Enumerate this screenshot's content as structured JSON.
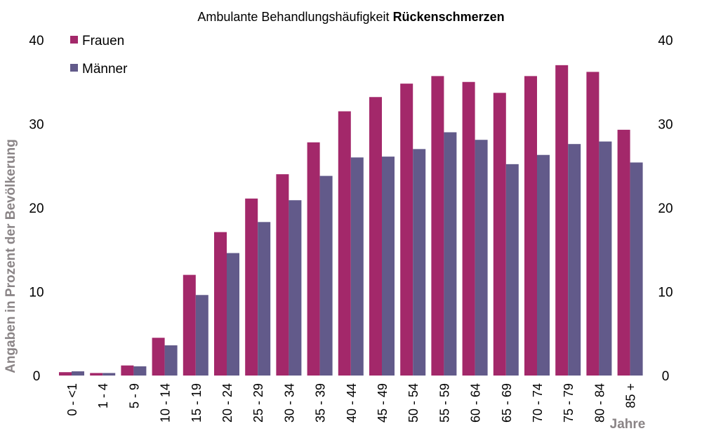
{
  "chart_data": {
    "type": "bar",
    "title_regular": "Ambulante Behandlungshäufigkeit ",
    "title_bold": "Rückenschmerzen",
    "ylabel": "Angaben in Prozent der Bevölkerung",
    "xlabel": "Jahre",
    "ylim": [
      0,
      40
    ],
    "yticks": [
      0,
      10,
      20,
      30,
      40
    ],
    "y_axis_both_sides": true,
    "grid": false,
    "legend_position": "top-left",
    "categories": [
      "0 - <1",
      "1 - 4",
      "5 - 9",
      "10 - 14",
      "15 - 19",
      "20 - 24",
      "25 - 29",
      "30 - 34",
      "35 - 39",
      "40 - 44",
      "45 - 49",
      "50 - 54",
      "55 - 59",
      "60 - 64",
      "65 - 69",
      "70 - 74",
      "75 - 79",
      "80 - 84",
      "85 +"
    ],
    "series": [
      {
        "name": "Frauen",
        "color": "#a3286a",
        "values": [
          0.4,
          0.3,
          1.2,
          4.5,
          12.0,
          17.1,
          21.1,
          24.0,
          27.8,
          31.5,
          33.2,
          34.8,
          35.7,
          35.0,
          33.7,
          35.7,
          37.0,
          36.2,
          29.3
        ]
      },
      {
        "name": "Männer",
        "color": "#625a8a",
        "values": [
          0.5,
          0.3,
          1.1,
          3.6,
          9.6,
          14.6,
          18.3,
          20.9,
          23.8,
          26.0,
          26.1,
          27.0,
          29.0,
          28.1,
          25.2,
          26.3,
          27.6,
          27.9,
          25.4
        ]
      }
    ]
  }
}
